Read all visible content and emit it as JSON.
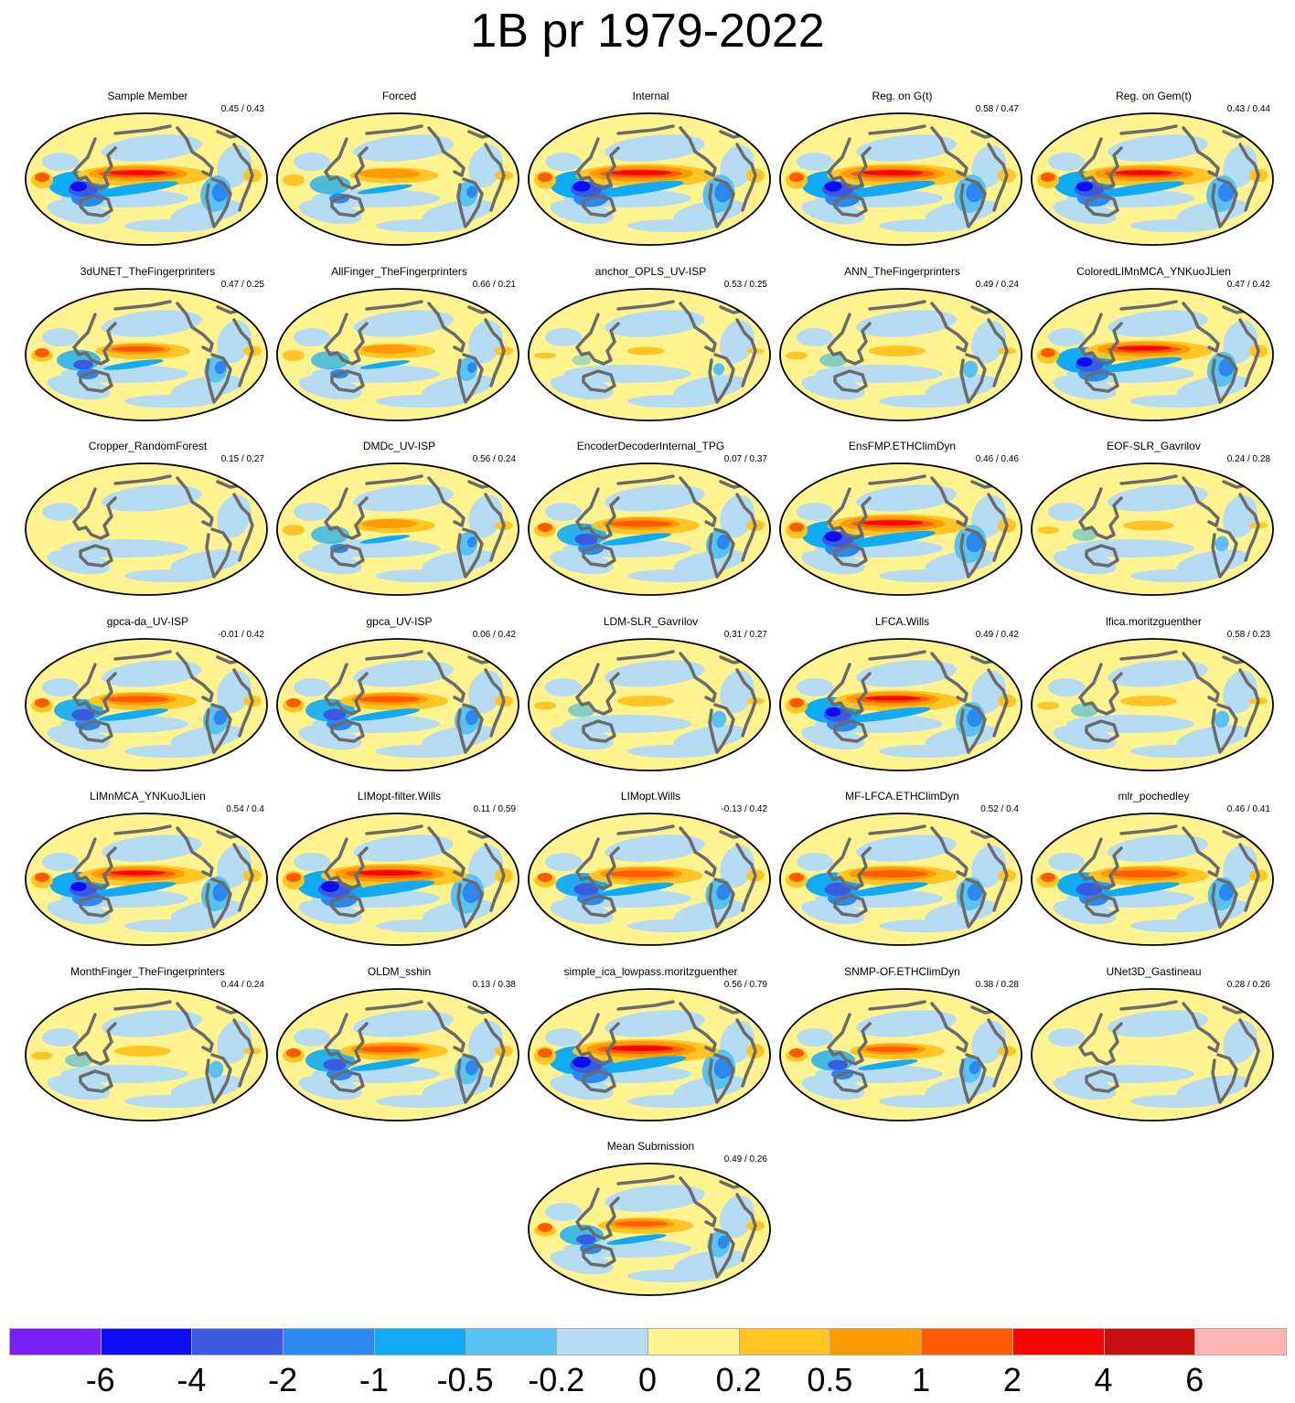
{
  "title": "1B pr 1979-2022",
  "panels": [
    {
      "name": "Sample Member",
      "stats": "0.45 / 0.43",
      "intensity": 0.9
    },
    {
      "name": "Forced",
      "stats": "",
      "intensity": 0.55
    },
    {
      "name": "Internal",
      "stats": "",
      "intensity": 0.95
    },
    {
      "name": "Reg. on G(t)",
      "stats": "0.58 / 0.47",
      "intensity": 0.95
    },
    {
      "name": "Reg. on Gem(t)",
      "stats": "0.43 / 0.44",
      "intensity": 0.9
    },
    {
      "name": "3dUNET_TheFingerprinters",
      "stats": "0.47 / 0.25",
      "intensity": 0.6
    },
    {
      "name": "AllFinger_TheFingerprinters",
      "stats": "0.66 / 0.21",
      "intensity": 0.5
    },
    {
      "name": "anchor_OPLS_UV-ISP",
      "stats": "0.53 / 0.25",
      "intensity": 0.15
    },
    {
      "name": "ANN_TheFingerprinters",
      "stats": "0.49 / 0.24",
      "intensity": 0.3
    },
    {
      "name": "ColoredLIMnMCA_YNKuoJLien",
      "stats": "0.47 / 0.42",
      "intensity": 0.85
    },
    {
      "name": "Cropper_RandomForest",
      "stats": "0.15 / 0.27",
      "intensity": 0.05
    },
    {
      "name": "DMDc_UV-ISP",
      "stats": "0.56 / 0.24",
      "intensity": 0.5
    },
    {
      "name": "EncoderDecoderInternal_TPG",
      "stats": "0.07 / 0.37",
      "intensity": 0.7
    },
    {
      "name": "EnsFMP.ETHClimDyn",
      "stats": "0.46 / 0.46",
      "intensity": 0.95
    },
    {
      "name": "EOF-SLR_Gavrilov",
      "stats": "0.24 / 0.28",
      "intensity": 0.25
    },
    {
      "name": "gpca-da_UV-ISP",
      "stats": "-0.01 / 0.42",
      "intensity": 0.7
    },
    {
      "name": "gpca_UV-ISP",
      "stats": "0.06 / 0.42",
      "intensity": 0.7
    },
    {
      "name": "LDM-SLR_Gavrilov",
      "stats": "0.31 / 0.27",
      "intensity": 0.3
    },
    {
      "name": "LFCA.Wills",
      "stats": "0.49 / 0.42",
      "intensity": 0.85
    },
    {
      "name": "lfica.moritzguenther",
      "stats": "0.58 / 0.23",
      "intensity": 0.3
    },
    {
      "name": "LIMnMCA_YNKuoJLien",
      "stats": "0.54 / 0.4",
      "intensity": 0.85
    },
    {
      "name": "LIMopt-filter.Wills",
      "stats": "0.11 / 0.59",
      "intensity": 1.0
    },
    {
      "name": "LIMopt.Wills",
      "stats": "-0.13 / 0.42",
      "intensity": 0.75
    },
    {
      "name": "MF-LFCA.ETHClimDyn",
      "stats": "0.52 / 0.4",
      "intensity": 0.8
    },
    {
      "name": "mlr_pochedley",
      "stats": "0.46 / 0.41",
      "intensity": 0.8
    },
    {
      "name": "MonthFinger_TheFingerprinters",
      "stats": "0.44 / 0.24",
      "intensity": 0.3
    },
    {
      "name": "OLDM_sshin",
      "stats": "0.13 / 0.38",
      "intensity": 0.7
    },
    {
      "name": "simple_ica_lowpass.moritzguenther",
      "stats": "0.56 / 0.79",
      "intensity": 1.0
    },
    {
      "name": "SNMP-OF.ETHClimDyn",
      "stats": "0.38 / 0.28",
      "intensity": 0.6
    },
    {
      "name": "UNet3D_Gastineau",
      "stats": "0.28 / 0.26",
      "intensity": 0.02
    },
    {
      "name": "Mean Submission",
      "stats": "0.49 / 0.26",
      "intensity": 0.6
    }
  ],
  "colorbar": {
    "colors": [
      "#7a1ff5",
      "#0b0bf8",
      "#3a5be0",
      "#2d87f0",
      "#11aaf4",
      "#59c2f2",
      "#b6dcf3",
      "#fff38f",
      "#ffc524",
      "#ff9a00",
      "#ff5a00",
      "#f80505",
      "#c80f0f",
      "#ffb4b4"
    ],
    "labels": [
      "-6",
      "-4",
      "-2",
      "-1",
      "-0.5",
      "-0.2",
      "0",
      "0.2",
      "0.5",
      "1",
      "2",
      "4",
      "6"
    ]
  }
}
